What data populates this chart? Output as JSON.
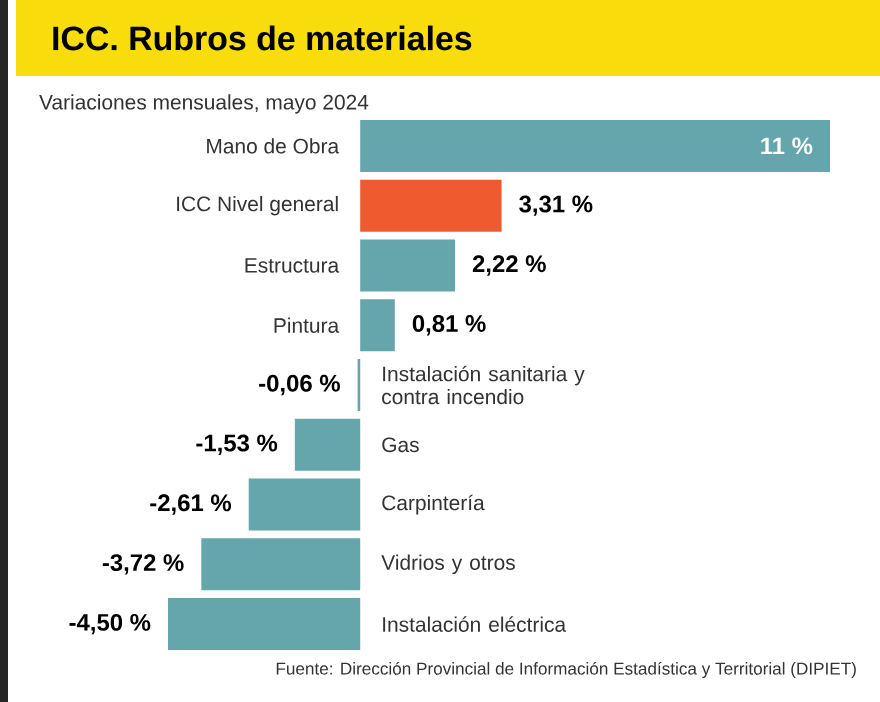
{
  "chart_data": {
    "type": "bar",
    "orientation": "horizontal",
    "title": "ICC. Rubros de materiales",
    "subtitle": "Variaciones mensuales, mayo 2024",
    "categories": [
      "Mano de Obra",
      "ICC Nivel general",
      "Estructura",
      "Pintura",
      "Instalación sanitaria y contra incendio",
      "Gas",
      "Carpintería",
      "Vidrios y otros",
      "Instalación eléctrica"
    ],
    "values": [
      11,
      3.31,
      2.22,
      0.81,
      -0.06,
      -1.53,
      -2.61,
      -3.72,
      -4.5
    ],
    "colors": [
      "#64a6ab",
      "#ef5b2f",
      "#64a6ab",
      "#64a6ab",
      "#64a6ab",
      "#64a6ab",
      "#64a6ab",
      "#64a6ab",
      "#64a6ab"
    ],
    "value_labels": [
      "11 %",
      "3,31 %",
      "2,22 %",
      "0,81 %",
      "-0,06 %",
      "-1,53 %",
      "-2,61 %",
      "-3,72 %",
      "-4,50 %"
    ],
    "annotations": [
      "Fuente: Dirección Provincial de Información Estadística y Territorial (DIPIET)"
    ]
  }
}
